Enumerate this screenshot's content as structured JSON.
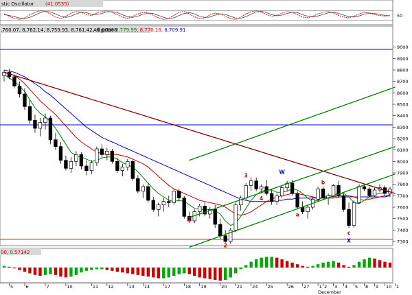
{
  "chart_data": {
    "type": "candlestick",
    "colors": {
      "up_candle_fill": "#ffffff",
      "down_candle_fill": "#000000",
      "candle_outline": "#000000",
      "ma_fast": "#008000",
      "ma_mid": "#cc0000",
      "ma_slow": "#0000cc",
      "downtrend": "#800000",
      "channel": "#008000",
      "hline_blue": "#0000cc",
      "hline_red": "#cc0000",
      "wave_label_red": "#cc0000",
      "wave_label_blue": "#0000cc",
      "osc_k": "#cc0000",
      "osc_d": "#444444",
      "hist_up": "#00aa00",
      "hist_down": "#cc0000",
      "panel_title_bg": "#d8d8d8",
      "grid": "#c0c0c0"
    },
    "price_panel": {
      "ylim": [
        7300,
        9100
      ],
      "ytick_labels": [
        "9000",
        "8900",
        "8800",
        "8700",
        "8600",
        "8500",
        "8400",
        "8300",
        "8200",
        "8100",
        "8000",
        "7900",
        "7800",
        "7700",
        "7600",
        "7500",
        "7400",
        "7300"
      ],
      "ytick_values": [
        9000,
        8900,
        8800,
        8700,
        8600,
        8500,
        8400,
        8300,
        8200,
        8100,
        8000,
        7900,
        7800,
        7700,
        7600,
        7500,
        7400,
        7300
      ],
      "header_prefix": ",760.07, 8,762.14, 8,759.93, 8,761.42, -0.00008",
      "alligator_label": "Alligator",
      "alligator_values": [
        {
          "text": "8,779.99",
          "color": "#008000"
        },
        {
          "text": "8,770.18",
          "color": "#cc0000"
        },
        {
          "text": "8,709.91",
          "color": "#0000cc"
        }
      ],
      "candles": [
        [
          8750,
          8800,
          8700,
          8780
        ],
        [
          8780,
          8810,
          8720,
          8740
        ],
        [
          8740,
          8760,
          8640,
          8660
        ],
        [
          8660,
          8700,
          8560,
          8590
        ],
        [
          8590,
          8640,
          8450,
          8480
        ],
        [
          8480,
          8540,
          8330,
          8360
        ],
        [
          8360,
          8410,
          8250,
          8290
        ],
        [
          8290,
          8380,
          8220,
          8340
        ],
        [
          8340,
          8420,
          8280,
          8380
        ],
        [
          8380,
          8400,
          8150,
          8190
        ],
        [
          8190,
          8250,
          8100,
          8130
        ],
        [
          8130,
          8170,
          7980,
          8010
        ],
        [
          8010,
          8050,
          7920,
          7940
        ],
        [
          7940,
          8040,
          7900,
          8000
        ],
        [
          8000,
          8090,
          7960,
          8060
        ],
        [
          8060,
          8080,
          7930,
          7960
        ],
        [
          7960,
          8010,
          7880,
          7920
        ],
        [
          7920,
          8010,
          7890,
          7990
        ],
        [
          7990,
          8130,
          7960,
          8110
        ],
        [
          8110,
          8150,
          8030,
          8060
        ],
        [
          8060,
          8120,
          8010,
          8090
        ],
        [
          8090,
          8110,
          7980,
          8000
        ],
        [
          8000,
          8030,
          7900,
          7920
        ],
        [
          7920,
          7980,
          7870,
          7950
        ],
        [
          7950,
          8020,
          7920,
          8000
        ],
        [
          8000,
          8010,
          7830,
          7850
        ],
        [
          7850,
          7880,
          7720,
          7740
        ],
        [
          7740,
          7800,
          7680,
          7780
        ],
        [
          7780,
          7810,
          7640,
          7660
        ],
        [
          7660,
          7690,
          7560,
          7580
        ],
        [
          7580,
          7640,
          7520,
          7620
        ],
        [
          7620,
          7680,
          7560,
          7650
        ],
        [
          7650,
          7700,
          7600,
          7640
        ],
        [
          7640,
          7760,
          7620,
          7740
        ],
        [
          7740,
          7760,
          7650,
          7680
        ],
        [
          7680,
          7700,
          7500,
          7520
        ],
        [
          7520,
          7560,
          7460,
          7480
        ],
        [
          7480,
          7580,
          7460,
          7560
        ],
        [
          7560,
          7630,
          7520,
          7610
        ],
        [
          7610,
          7640,
          7520,
          7540
        ],
        [
          7540,
          7600,
          7500,
          7580
        ],
        [
          7580,
          7620,
          7420,
          7450
        ],
        [
          7450,
          7500,
          7320,
          7350
        ],
        [
          7350,
          7400,
          7290,
          7300
        ],
        [
          7300,
          7420,
          7280,
          7400
        ],
        [
          7400,
          7640,
          7380,
          7620
        ],
        [
          7620,
          7700,
          7570,
          7680
        ],
        [
          7680,
          7810,
          7660,
          7790
        ],
        [
          7790,
          7860,
          7740,
          7830
        ],
        [
          7830,
          7860,
          7740,
          7760
        ],
        [
          7760,
          7800,
          7720,
          7780
        ],
        [
          7780,
          7840,
          7700,
          7720
        ],
        [
          7720,
          7760,
          7620,
          7650
        ],
        [
          7650,
          7720,
          7620,
          7700
        ],
        [
          7700,
          7790,
          7680,
          7770
        ],
        [
          7770,
          7830,
          7740,
          7810
        ],
        [
          7810,
          7840,
          7700,
          7720
        ],
        [
          7720,
          7740,
          7580,
          7600
        ],
        [
          7600,
          7650,
          7540,
          7560
        ],
        [
          7560,
          7620,
          7500,
          7600
        ],
        [
          7600,
          7690,
          7580,
          7670
        ],
        [
          7670,
          7780,
          7650,
          7760
        ],
        [
          7760,
          7780,
          7660,
          7680
        ],
        [
          7680,
          7720,
          7620,
          7700
        ],
        [
          7700,
          7800,
          7690,
          7790
        ],
        [
          7790,
          7830,
          7680,
          7700
        ],
        [
          7700,
          7720,
          7560,
          7580
        ],
        [
          7580,
          7640,
          7420,
          7440
        ],
        [
          7440,
          7660,
          7420,
          7640
        ],
        [
          7640,
          7800,
          7630,
          7780
        ],
        [
          7780,
          7800,
          7740,
          7760
        ],
        [
          7760,
          7780,
          7690,
          7700
        ],
        [
          7700,
          7770,
          7690,
          7750
        ],
        [
          7750,
          7800,
          7730,
          7770
        ],
        [
          7770,
          7790,
          7700,
          7720
        ],
        [
          7720,
          7780,
          7690,
          7760
        ]
      ],
      "ma_fast": [
        8760,
        8730,
        8700,
        8660,
        8610,
        8540,
        8470,
        8420,
        8390,
        8350,
        8290,
        8220,
        8150,
        8080,
        8050,
        8040,
        8020,
        8000,
        8010,
        8030,
        8040,
        8040,
        8020,
        7990,
        7970,
        7950,
        7910,
        7860,
        7810,
        7760,
        7720,
        7690,
        7660,
        7650,
        7660,
        7650,
        7620,
        7590,
        7580,
        7580,
        7580,
        7570,
        7540,
        7480,
        7440,
        7460,
        7520,
        7590,
        7660,
        7710,
        7740,
        7750,
        7750,
        7730,
        7730,
        7740,
        7760,
        7750,
        7720,
        7680,
        7650,
        7660,
        7690,
        7700,
        7710,
        7720,
        7720,
        7690,
        7640,
        7630,
        7660,
        7690,
        7710,
        7720,
        7730,
        7740
      ],
      "ma_mid": [
        8780,
        8770,
        8750,
        8720,
        8680,
        8630,
        8580,
        8530,
        8490,
        8450,
        8410,
        8360,
        8310,
        8260,
        8210,
        8170,
        8140,
        8110,
        8080,
        8070,
        8060,
        8060,
        8060,
        8050,
        8040,
        8020,
        8000,
        7980,
        7950,
        7910,
        7870,
        7830,
        7790,
        7760,
        7740,
        7720,
        7700,
        7680,
        7660,
        7650,
        7640,
        7630,
        7620,
        7600,
        7570,
        7540,
        7530,
        7540,
        7560,
        7590,
        7620,
        7650,
        7670,
        7690,
        7700,
        7710,
        7720,
        7720,
        7710,
        7700,
        7690,
        7680,
        7680,
        7690,
        7690,
        7700,
        7700,
        7700,
        7690,
        7670,
        7660,
        7670,
        7680,
        7690,
        7700,
        7710
      ],
      "ma_slow": [
        8800,
        8790,
        8780,
        8760,
        8740,
        8710,
        8680,
        8650,
        8610,
        8580,
        8540,
        8500,
        8460,
        8420,
        8380,
        8340,
        8300,
        8270,
        8240,
        8210,
        8190,
        8170,
        8150,
        8130,
        8110,
        8090,
        8070,
        8050,
        8030,
        8010,
        7990,
        7970,
        7950,
        7930,
        7910,
        7890,
        7870,
        7850,
        7830,
        7810,
        7790,
        7770,
        7750,
        7730,
        7710,
        7690,
        7670,
        7660,
        7650,
        7650,
        7650,
        7650,
        7650,
        7660,
        7660,
        7670,
        7670,
        7680,
        7680,
        7680,
        7680,
        7680,
        7680,
        7680,
        7680,
        7690,
        7690,
        7690,
        7690,
        7690,
        7690,
        7690,
        7690,
        7690,
        7690,
        7700
      ],
      "hlines": [
        {
          "value": 8980,
          "color_key": "hline_blue"
        },
        {
          "value": 8320,
          "color_key": "hline_blue"
        },
        {
          "value": 7320,
          "color_key": "hline_red"
        }
      ],
      "trendlines": [
        {
          "color_key": "downtrend",
          "from": [
            0,
            8780
          ],
          "to": [
            76,
            7720
          ]
        },
        {
          "color_key": "channel",
          "from": [
            36,
            7510
          ],
          "to": [
            76,
            8130
          ]
        },
        {
          "color_key": "channel",
          "from": [
            36,
            8010
          ],
          "to": [
            76,
            8650
          ]
        },
        {
          "color_key": "channel",
          "from": [
            36,
            7250
          ],
          "to": [
            76,
            7890
          ]
        }
      ],
      "wave_labels": [
        {
          "text": "1",
          "i": 36,
          "v": 7480,
          "color_key": "wave_label_red"
        },
        {
          "text": "2",
          "i": 43,
          "v": 7250,
          "color_key": "wave_label_red"
        },
        {
          "text": "3",
          "i": 47,
          "v": 7860,
          "color_key": "wave_label_red"
        },
        {
          "text": "4",
          "i": 50,
          "v": 7660,
          "color_key": "wave_label_red"
        },
        {
          "text": "W",
          "i": 54,
          "v": 7890,
          "color_key": "wave_label_blue"
        },
        {
          "text": "a",
          "i": 57,
          "v": 7520,
          "color_key": "wave_label_red"
        },
        {
          "text": "b",
          "i": 62,
          "v": 7800,
          "color_key": "wave_label_red"
        },
        {
          "text": "c",
          "i": 67,
          "v": 7360,
          "color_key": "wave_label_red"
        },
        {
          "text": "X",
          "i": 67,
          "v": 7290,
          "color_key": "wave_label_blue"
        }
      ]
    },
    "oscillator_panel": {
      "title": "stic Oscillator",
      "value_label": "(41.0535)",
      "ytick_labels": [
        "50"
      ],
      "ytick_values": [
        50
      ],
      "levels": [
        80,
        20
      ],
      "k": [
        60,
        45,
        30,
        25,
        35,
        55,
        70,
        80,
        75,
        60,
        40,
        30,
        45,
        65,
        75,
        70,
        55,
        50,
        65,
        75,
        80,
        70,
        55,
        40,
        30,
        45,
        60,
        70,
        65,
        50,
        35,
        25,
        30,
        50,
        70,
        75,
        60,
        40,
        30,
        35,
        55,
        65,
        60,
        45,
        30,
        25,
        40,
        60,
        75,
        80,
        70,
        55,
        45,
        50,
        65,
        75,
        70,
        55,
        40,
        35,
        45,
        60,
        70,
        75,
        65,
        50,
        40,
        35,
        45,
        60,
        70,
        65,
        55,
        50,
        45,
        50
      ],
      "d": [
        55,
        50,
        42,
        33,
        30,
        38,
        52,
        68,
        76,
        72,
        60,
        45,
        38,
        45,
        60,
        70,
        68,
        58,
        55,
        63,
        72,
        74,
        68,
        55,
        42,
        38,
        45,
        58,
        65,
        62,
        50,
        38,
        30,
        35,
        50,
        62,
        68,
        60,
        45,
        37,
        40,
        52,
        60,
        56,
        45,
        33,
        32,
        42,
        58,
        72,
        77,
        68,
        55,
        48,
        52,
        63,
        70,
        68,
        55,
        45,
        40,
        47,
        57,
        67,
        70,
        63,
        52,
        42,
        40,
        47,
        58,
        65,
        63,
        57,
        50,
        48
      ]
    },
    "histogram_panel": {
      "value_label": "00, 0.57142",
      "values": [
        2,
        1,
        -1,
        -3,
        -5,
        -7,
        -9,
        -10,
        -9,
        -8,
        -9,
        -11,
        -12,
        -11,
        -9,
        -6,
        -4,
        -3,
        -2,
        -2,
        -3,
        -4,
        -5,
        -6,
        -7,
        -8,
        -9,
        -10,
        -11,
        -12,
        -13,
        -13,
        -12,
        -10,
        -8,
        -7,
        -8,
        -10,
        -12,
        -13,
        -14,
        -15,
        -16,
        -15,
        -12,
        -7,
        -2,
        3,
        7,
        10,
        12,
        13,
        13,
        12,
        10,
        8,
        6,
        4,
        2,
        1,
        2,
        4,
        6,
        7,
        8,
        6,
        3,
        1,
        3,
        7,
        10,
        12,
        11,
        9,
        7,
        6
      ]
    },
    "x_axis": {
      "labels": [
        {
          "text": "5",
          "i": 1
        },
        {
          "text": "6",
          "i": 4
        },
        {
          "text": "7",
          "i": 8
        },
        {
          "text": "10",
          "i": 12
        },
        {
          "text": "11",
          "i": 17
        },
        {
          "text": "12",
          "i": 20
        },
        {
          "text": "13",
          "i": 24
        },
        {
          "text": "14",
          "i": 27
        },
        {
          "text": "17",
          "i": 31
        },
        {
          "text": "18",
          "i": 35
        },
        {
          "text": "19",
          "i": 38
        },
        {
          "text": "20",
          "i": 42
        },
        {
          "text": "21",
          "i": 45
        },
        {
          "text": "24",
          "i": 48
        },
        {
          "text": "25",
          "i": 51
        },
        {
          "text": "26",
          "i": 55
        },
        {
          "text": "27",
          "i": 58
        },
        {
          "text": "1",
          "i": 61
        },
        {
          "text": "2",
          "i": 62
        },
        {
          "text": "3",
          "i": 64
        },
        {
          "text": "4",
          "i": 66
        },
        {
          "text": "5",
          "i": 68
        },
        {
          "text": "8",
          "i": 70
        },
        {
          "text": "9",
          "i": 72
        },
        {
          "text": "10",
          "i": 74
        },
        {
          "text": "1",
          "i": 76
        }
      ],
      "month_label": {
        "text": "December",
        "i": 61
      }
    }
  }
}
